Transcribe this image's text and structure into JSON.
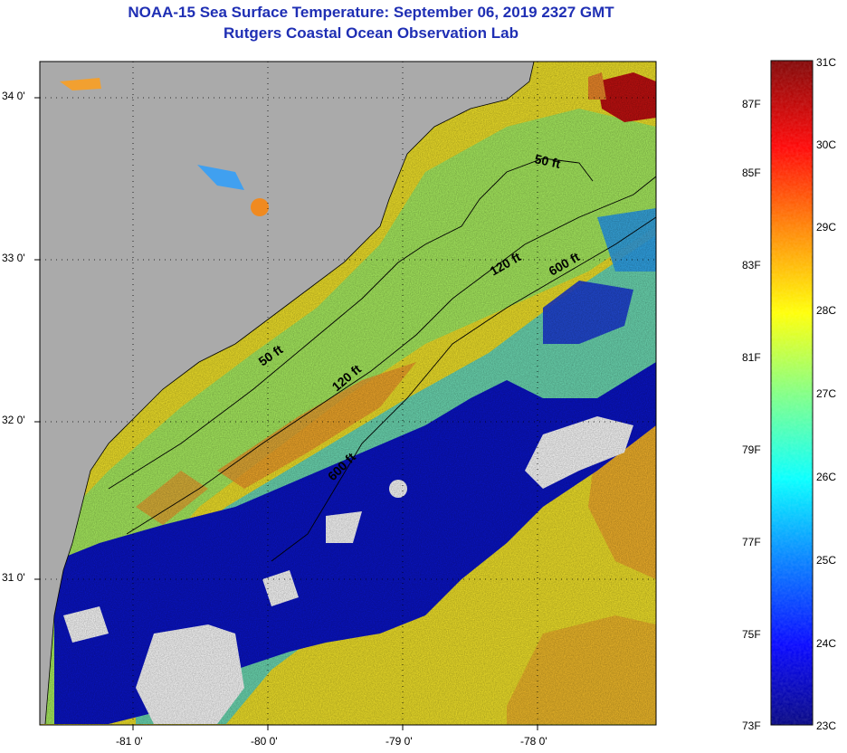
{
  "title": {
    "line1": "NOAA-15 Sea Surface Temperature:  September 06, 2019 2327 GMT",
    "line2": "Rutgers Coastal Ocean Observation Lab"
  },
  "colors": {
    "title": "#1f2fb4",
    "land": "#aaaaaa",
    "cloud": "#ffffff",
    "frame": "#000000",
    "scale": [
      "#00007f",
      "#0000ff",
      "#0080ff",
      "#00ffff",
      "#80ff80",
      "#ffff00",
      "#ff8000",
      "#ff0000",
      "#7f0000"
    ]
  },
  "map": {
    "lon_labels": [
      "-81 0'",
      "-80 0'",
      "-79 0'",
      "-78 0'"
    ],
    "lat_labels": [
      "34 0'",
      "33 0'",
      "32 0'",
      "31 0'"
    ],
    "contours": [
      {
        "label": "50 ft"
      },
      {
        "label": "50 ft"
      },
      {
        "label": "120 ft"
      },
      {
        "label": "120 ft"
      },
      {
        "label": "600 ft"
      },
      {
        "label": "600 ft"
      }
    ]
  },
  "colorbar": {
    "fahrenheit": [
      "87F",
      "85F",
      "83F",
      "81F",
      "79F",
      "77F",
      "75F",
      "73F"
    ],
    "celsius": [
      "31C",
      "30C",
      "29C",
      "28C",
      "27C",
      "26C",
      "25C",
      "24C",
      "23C"
    ]
  }
}
